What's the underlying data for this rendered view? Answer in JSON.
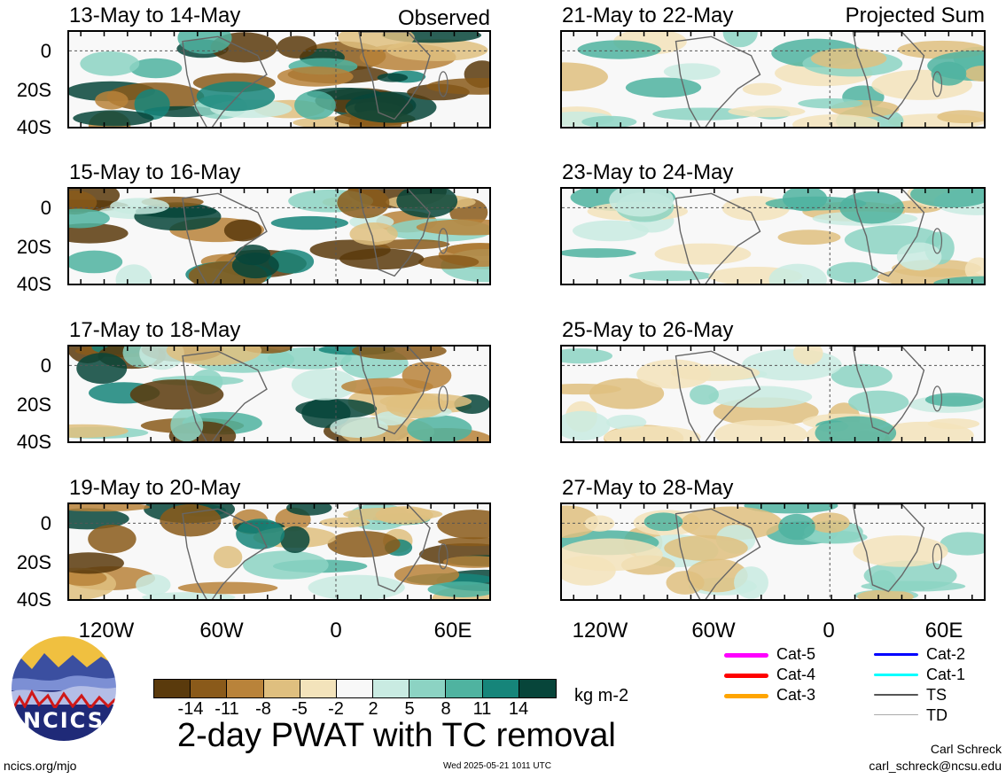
{
  "panels_left": [
    {
      "title": "13-May to 14-May",
      "tag": "Observed"
    },
    {
      "title": "15-May to 16-May",
      "tag": ""
    },
    {
      "title": "17-May to 18-May",
      "tag": ""
    },
    {
      "title": "19-May to 20-May",
      "tag": ""
    }
  ],
  "panels_right": [
    {
      "title": "21-May to 22-May",
      "tag": "Projected Sum"
    },
    {
      "title": "23-May to 24-May",
      "tag": ""
    },
    {
      "title": "25-May to 26-May",
      "tag": ""
    },
    {
      "title": "27-May to 28-May",
      "tag": ""
    }
  ],
  "lat_labels": [
    "0",
    "20S",
    "40S"
  ],
  "lon_labels": [
    "120W",
    "60W",
    "0",
    "60E"
  ],
  "colorbar": {
    "colors": [
      "#5a3a0c",
      "#8a5a1a",
      "#b9833a",
      "#dfbf7f",
      "#f3e3bb",
      "#f8f8f8",
      "#c9ebe2",
      "#8cd3c3",
      "#4fb3a0",
      "#16857a",
      "#07453a"
    ],
    "labels": [
      "-14",
      "-11",
      "-8",
      "-5",
      "-2",
      "2",
      "5",
      "8",
      "11",
      "14"
    ],
    "unit": "kg m-2"
  },
  "title": "2-day PWAT with TC removal",
  "logo_text": "NCICS",
  "legend": [
    {
      "label": "Cat-5",
      "color": "#ff00ff"
    },
    {
      "label": "Cat-4",
      "color": "#ff0000"
    },
    {
      "label": "Cat-3",
      "color": "#ffa500"
    },
    {
      "label": "Cat-2",
      "color": "#0000ff"
    },
    {
      "label": "Cat-1",
      "color": "#00ffff"
    },
    {
      "label": "TS",
      "color": "#555555"
    },
    {
      "label": "TD",
      "color": "#aaaaaa"
    }
  ],
  "footer": {
    "url": "ncics.org/mjo",
    "timestamp": "Wed 2025-05-21 1011 UTC",
    "author": "Carl Schreck",
    "email": "carl_schreck@ncsu.edu"
  }
}
